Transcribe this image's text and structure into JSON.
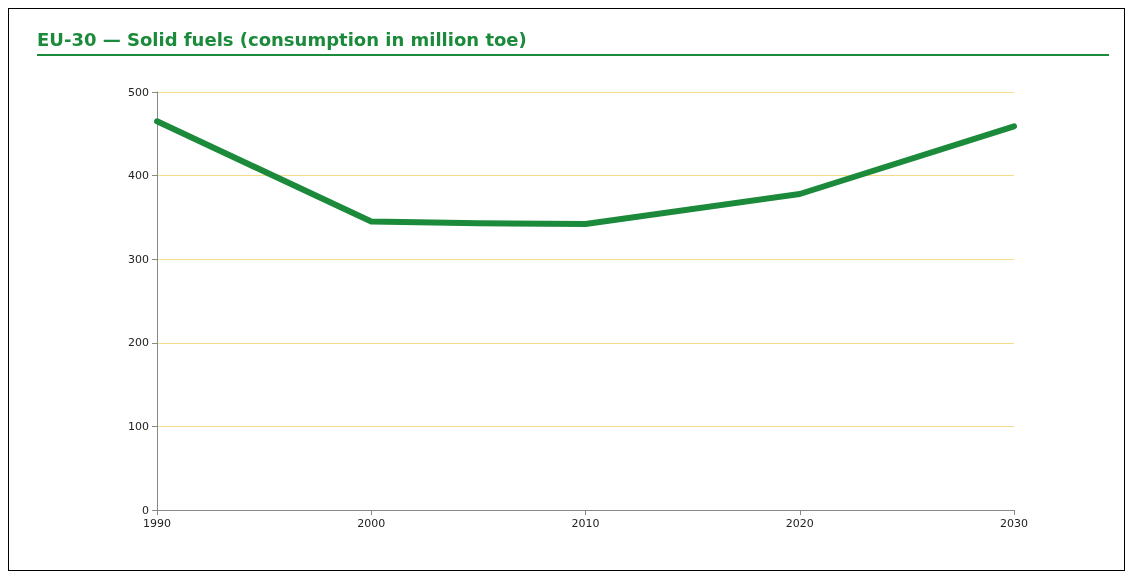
{
  "chart_data": {
    "type": "line",
    "title": "EU-30 — Solid fuels (consumption in million toe)",
    "x": [
      1990,
      2000,
      2005,
      2010,
      2020,
      2030
    ],
    "series": [
      {
        "color": "#1b8a3a",
        "values": [
          465,
          345,
          343,
          342,
          378,
          459
        ]
      }
    ],
    "xlim": [
      1990,
      2030
    ],
    "xticks": [
      1990,
      2000,
      2010,
      2020,
      2030
    ],
    "ylim": [
      0,
      500
    ],
    "yticks": [
      0,
      100,
      200,
      300,
      400,
      500
    ],
    "grid": "y",
    "marker": "none",
    "line_style": "solid"
  }
}
